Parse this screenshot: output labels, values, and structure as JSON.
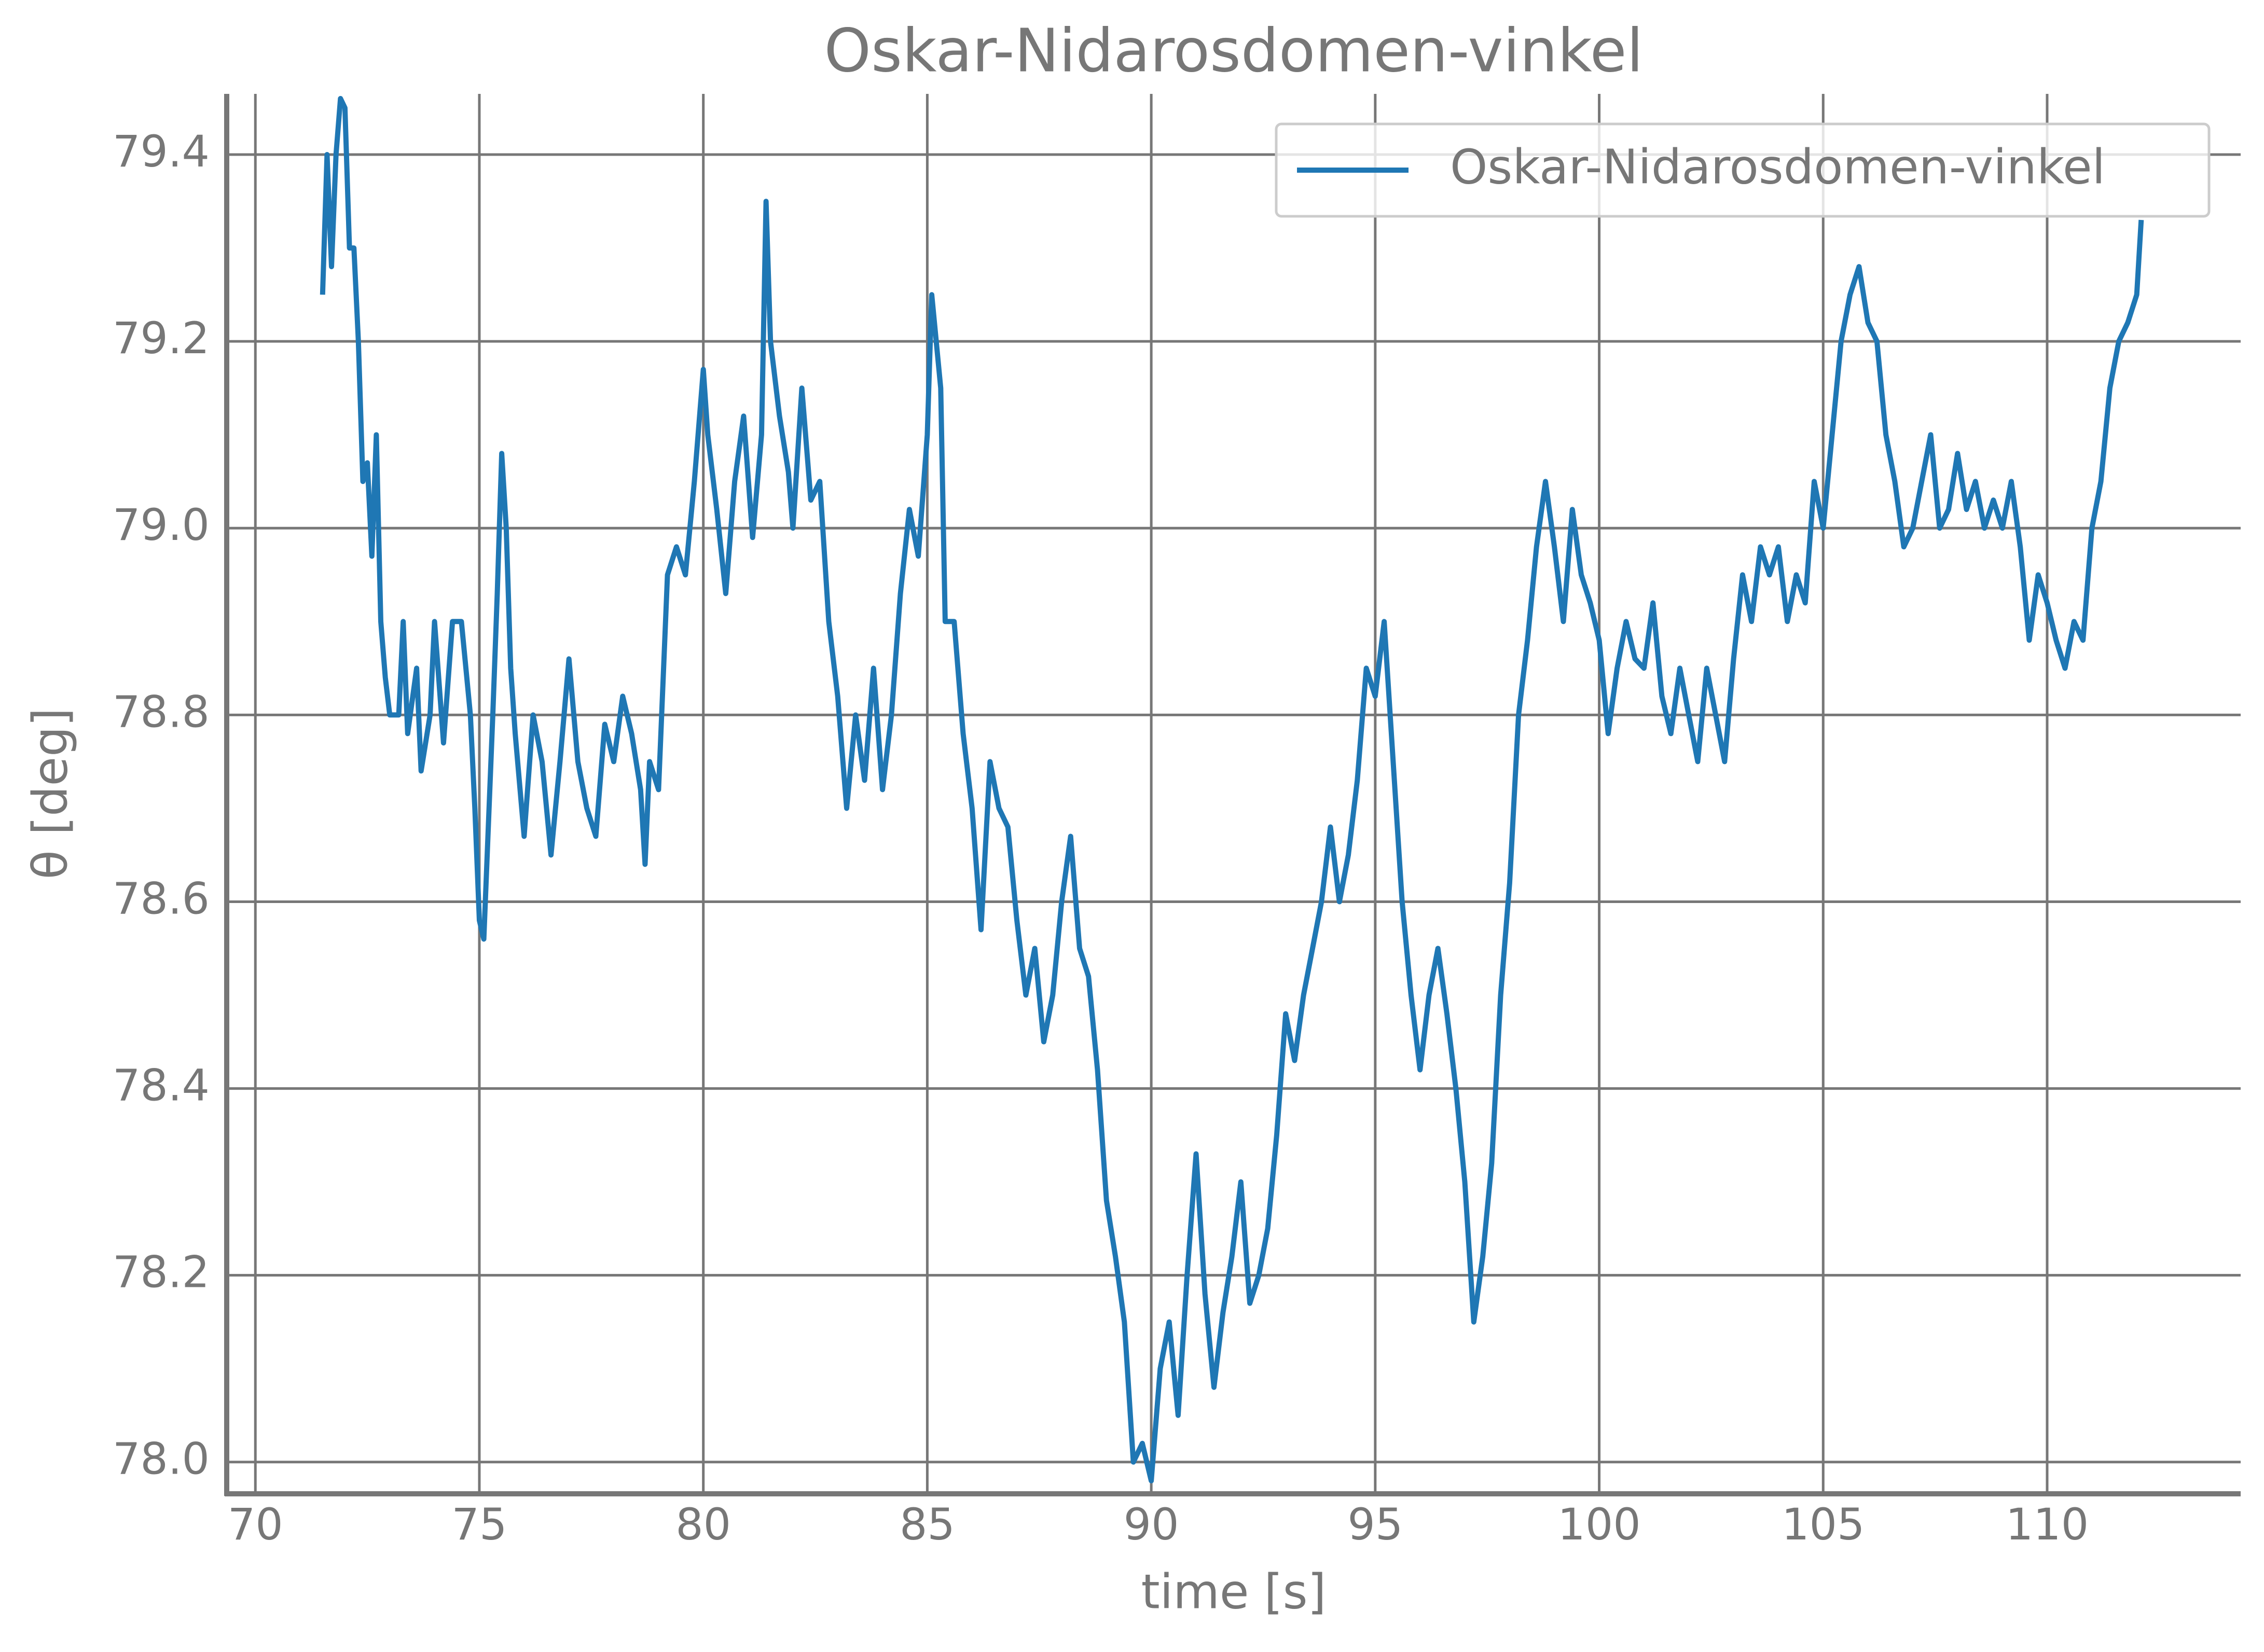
{
  "chart_data": {
    "type": "line",
    "title": "Oskar-Nidarosdomen-vinkel",
    "xlabel": "time [s]",
    "ylabel": "θ [deg]",
    "xlim": [
      69.36,
      114.32
    ],
    "ylim": [
      77.966,
      79.465
    ],
    "xticks": [
      70,
      75,
      80,
      85,
      90,
      95,
      100,
      105,
      110
    ],
    "yticks": [
      {
        "value": 78,
        "label": "78.0"
      },
      78.2,
      78.4,
      78.6,
      78.8,
      {
        "value": 79,
        "label": "79.0"
      },
      79.2,
      79.4
    ],
    "grid": true,
    "legend": "upper right",
    "x": [
      71.5,
      71.6,
      71.7,
      71.8,
      71.9,
      72.0,
      72.1,
      72.2,
      72.3,
      72.4,
      72.5,
      72.6,
      72.7,
      72.8,
      72.9,
      73.0,
      73.2,
      73.3,
      73.4,
      73.6,
      73.7,
      73.9,
      74.0,
      74.2,
      74.4,
      74.6,
      74.8,
      74.9,
      75.0,
      75.1,
      75.3,
      75.4,
      75.5,
      75.6,
      75.7,
      75.8,
      76.0,
      76.2,
      76.4,
      76.6,
      76.8,
      77.0,
      77.2,
      77.4,
      77.6,
      77.8,
      78.0,
      78.2,
      78.4,
      78.6,
      78.7,
      78.8,
      79.0,
      79.2,
      79.4,
      79.6,
      79.8,
      80.0,
      80.1,
      80.3,
      80.5,
      80.7,
      80.9,
      81.1,
      81.3,
      81.4,
      81.5,
      81.7,
      81.9,
      82.0,
      82.2,
      82.4,
      82.6,
      82.8,
      83.0,
      83.2,
      83.4,
      83.6,
      83.8,
      84.0,
      84.2,
      84.4,
      84.6,
      84.8,
      85.0,
      85.1,
      85.3,
      85.4,
      85.6,
      85.8,
      86.0,
      86.2,
      86.4,
      86.6,
      86.8,
      87.0,
      87.2,
      87.4,
      87.6,
      87.8,
      88.0,
      88.2,
      88.4,
      88.6,
      88.8,
      89.0,
      89.2,
      89.4,
      89.6,
      89.8,
      90.0,
      90.2,
      90.4,
      90.6,
      90.8,
      91.0,
      91.2,
      91.4,
      91.6,
      91.8,
      92.0,
      92.2,
      92.4,
      92.6,
      92.8,
      93.0,
      93.2,
      93.4,
      93.6,
      93.8,
      94.0,
      94.2,
      94.4,
      94.6,
      94.8,
      95.0,
      95.2,
      95.4,
      95.6,
      95.8,
      96.0,
      96.2,
      96.4,
      96.6,
      96.8,
      97.0,
      97.2,
      97.4,
      97.6,
      97.8,
      98.0,
      98.2,
      98.4,
      98.6,
      98.8,
      99.0,
      99.2,
      99.4,
      99.6,
      99.8,
      100.0,
      100.2,
      100.4,
      100.6,
      100.8,
      101.0,
      101.2,
      101.4,
      101.6,
      101.8,
      102.0,
      102.2,
      102.4,
      102.6,
      102.8,
      103.0,
      103.2,
      103.4,
      103.6,
      103.8,
      104.0,
      104.2,
      104.4,
      104.6,
      104.8,
      105.0,
      105.2,
      105.4,
      105.6,
      105.8,
      106.0,
      106.2,
      106.4,
      106.6,
      106.8,
      107.0,
      107.2,
      107.4,
      107.6,
      107.8,
      108.0,
      108.2,
      108.4,
      108.6,
      108.8,
      109.0,
      109.2,
      109.4,
      109.6,
      109.8,
      110.0,
      110.2,
      110.4,
      110.6,
      110.8,
      111.0,
      111.2,
      111.4,
      111.6,
      111.8,
      112.0,
      112.1
    ],
    "series": [
      {
        "name": "Oskar-Nidarosdomen-vinkel",
        "color": "#1f77b4",
        "values": [
          79.25,
          79.4,
          79.28,
          79.4,
          79.46,
          79.45,
          79.3,
          79.3,
          79.2,
          79.05,
          79.07,
          78.97,
          79.1,
          78.9,
          78.84,
          78.8,
          78.8,
          78.9,
          78.78,
          78.85,
          78.74,
          78.8,
          78.9,
          78.77,
          78.9,
          78.9,
          78.8,
          78.7,
          78.58,
          78.56,
          78.8,
          78.93,
          79.08,
          79.0,
          78.85,
          78.78,
          78.67,
          78.8,
          78.75,
          78.65,
          78.75,
          78.86,
          78.75,
          78.7,
          78.67,
          78.79,
          78.75,
          78.82,
          78.78,
          78.72,
          78.64,
          78.75,
          78.72,
          78.95,
          78.98,
          78.95,
          79.05,
          79.17,
          79.1,
          79.02,
          78.93,
          79.05,
          79.12,
          78.99,
          79.1,
          79.35,
          79.2,
          79.12,
          79.06,
          79.0,
          79.15,
          79.03,
          79.05,
          78.9,
          78.82,
          78.7,
          78.8,
          78.73,
          78.85,
          78.72,
          78.8,
          78.93,
          79.02,
          78.97,
          79.1,
          79.25,
          79.15,
          78.9,
          78.9,
          78.78,
          78.7,
          78.57,
          78.75,
          78.7,
          78.68,
          78.58,
          78.5,
          78.55,
          78.45,
          78.5,
          78.6,
          78.67,
          78.55,
          78.52,
          78.42,
          78.28,
          78.22,
          78.15,
          78.0,
          78.02,
          77.98,
          78.1,
          78.15,
          78.05,
          78.2,
          78.33,
          78.18,
          78.08,
          78.16,
          78.22,
          78.3,
          78.17,
          78.2,
          78.25,
          78.35,
          78.48,
          78.43,
          78.5,
          78.55,
          78.6,
          78.68,
          78.6,
          78.65,
          78.73,
          78.85,
          78.82,
          78.9,
          78.75,
          78.6,
          78.5,
          78.42,
          78.5,
          78.55,
          78.48,
          78.4,
          78.3,
          78.15,
          78.22,
          78.32,
          78.5,
          78.62,
          78.8,
          78.88,
          78.98,
          79.05,
          78.98,
          78.9,
          79.02,
          78.95,
          78.92,
          78.88,
          78.78,
          78.85,
          78.9,
          78.86,
          78.85,
          78.92,
          78.82,
          78.78,
          78.85,
          78.8,
          78.75,
          78.85,
          78.8,
          78.75,
          78.86,
          78.95,
          78.9,
          78.98,
          78.95,
          78.98,
          78.9,
          78.95,
          78.92,
          79.05,
          79.0,
          79.1,
          79.2,
          79.25,
          79.28,
          79.22,
          79.2,
          79.1,
          79.05,
          78.98,
          79.0,
          79.05,
          79.1,
          79.0,
          79.02,
          79.08,
          79.02,
          79.05,
          79.0,
          79.03,
          79.0,
          79.05,
          78.98,
          78.88,
          78.95,
          78.92,
          78.88,
          78.85,
          78.9,
          78.88,
          79.0,
          79.05,
          79.15,
          79.2,
          79.22,
          79.25,
          79.33
        ]
      }
    ]
  }
}
